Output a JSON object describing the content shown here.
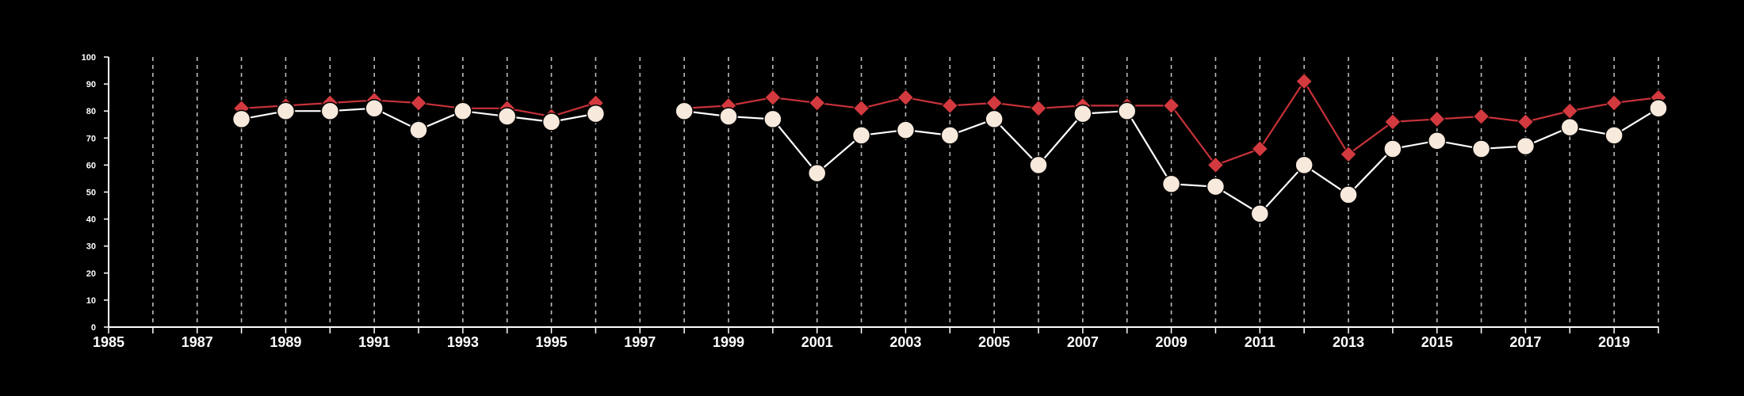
{
  "chart_data": {
    "type": "line",
    "title": "",
    "xlabel": "",
    "ylabel": "",
    "xlim": [
      1985,
      2020
    ],
    "ylim": [
      0,
      100
    ],
    "x_ticks": [
      1985,
      1986,
      1987,
      1988,
      1989,
      1990,
      1991,
      1992,
      1993,
      1994,
      1995,
      1996,
      1997,
      1998,
      1999,
      2000,
      2001,
      2002,
      2003,
      2004,
      2005,
      2006,
      2007,
      2008,
      2009,
      2010,
      2011,
      2012,
      2013,
      2014,
      2015,
      2016,
      2017,
      2018,
      2019,
      2020
    ],
    "x_tick_labels": [
      "1985",
      "1987",
      "1989",
      "1991",
      "1993",
      "1995",
      "1997",
      "1999",
      "2001",
      "2003",
      "2005",
      "2007",
      "2009",
      "2011",
      "2013",
      "2015",
      "2017",
      "2019"
    ],
    "y_ticks": [
      0,
      10,
      20,
      30,
      40,
      50,
      60,
      70,
      80,
      90,
      100
    ],
    "y_tick_labels": [
      "0",
      "10",
      "20",
      "30",
      "40",
      "50",
      "60",
      "70",
      "80",
      "90",
      "100"
    ],
    "grid": "vertical dashed lines at each year",
    "legend": "none",
    "series": [
      {
        "marker": "diamond",
        "color": "#d23a3f",
        "line_color": "#c8323a",
        "points": [
          {
            "x": 1988,
            "y": 81
          },
          {
            "x": 1989,
            "y": 82
          },
          {
            "x": 1990,
            "y": 83
          },
          {
            "x": 1991,
            "y": 84
          },
          {
            "x": 1992,
            "y": 83
          },
          {
            "x": 1993,
            "y": 81
          },
          {
            "x": 1994,
            "y": 81
          },
          {
            "x": 1995,
            "y": 78
          },
          {
            "x": 1996,
            "y": 83
          },
          {
            "x": 1998,
            "y": 81
          },
          {
            "x": 1999,
            "y": 82
          },
          {
            "x": 2000,
            "y": 85
          },
          {
            "x": 2001,
            "y": 83
          },
          {
            "x": 2002,
            "y": 81
          },
          {
            "x": 2003,
            "y": 85
          },
          {
            "x": 2004,
            "y": 82
          },
          {
            "x": 2005,
            "y": 83
          },
          {
            "x": 2006,
            "y": 81
          },
          {
            "x": 2007,
            "y": 82
          },
          {
            "x": 2008,
            "y": 82
          },
          {
            "x": 2009,
            "y": 82
          },
          {
            "x": 2010,
            "y": 60
          },
          {
            "x": 2011,
            "y": 66
          },
          {
            "x": 2012,
            "y": 91
          },
          {
            "x": 2013,
            "y": 64
          },
          {
            "x": 2014,
            "y": 76
          },
          {
            "x": 2015,
            "y": 77
          },
          {
            "x": 2016,
            "y": 78
          },
          {
            "x": 2017,
            "y": 76
          },
          {
            "x": 2018,
            "y": 80
          },
          {
            "x": 2019,
            "y": 83
          },
          {
            "x": 2020,
            "y": 85
          }
        ]
      },
      {
        "marker": "circle",
        "color": "#f7e9dc",
        "line_color": "#ffffff",
        "points": [
          {
            "x": 1988,
            "y": 77
          },
          {
            "x": 1989,
            "y": 80
          },
          {
            "x": 1990,
            "y": 80
          },
          {
            "x": 1991,
            "y": 81
          },
          {
            "x": 1992,
            "y": 73
          },
          {
            "x": 1993,
            "y": 80
          },
          {
            "x": 1994,
            "y": 78
          },
          {
            "x": 1995,
            "y": 76
          },
          {
            "x": 1996,
            "y": 79
          },
          {
            "x": 1998,
            "y": 80
          },
          {
            "x": 1999,
            "y": 78
          },
          {
            "x": 2000,
            "y": 77
          },
          {
            "x": 2001,
            "y": 57
          },
          {
            "x": 2002,
            "y": 71
          },
          {
            "x": 2003,
            "y": 73
          },
          {
            "x": 2004,
            "y": 71
          },
          {
            "x": 2005,
            "y": 77
          },
          {
            "x": 2006,
            "y": 60
          },
          {
            "x": 2007,
            "y": 79
          },
          {
            "x": 2008,
            "y": 80
          },
          {
            "x": 2009,
            "y": 53
          },
          {
            "x": 2010,
            "y": 52
          },
          {
            "x": 2011,
            "y": 42
          },
          {
            "x": 2012,
            "y": 60
          },
          {
            "x": 2013,
            "y": 49
          },
          {
            "x": 2014,
            "y": 66
          },
          {
            "x": 2015,
            "y": 69
          },
          {
            "x": 2016,
            "y": 66
          },
          {
            "x": 2017,
            "y": 67
          },
          {
            "x": 2018,
            "y": 74
          },
          {
            "x": 2019,
            "y": 71
          },
          {
            "x": 2020,
            "y": 81
          }
        ]
      }
    ]
  }
}
